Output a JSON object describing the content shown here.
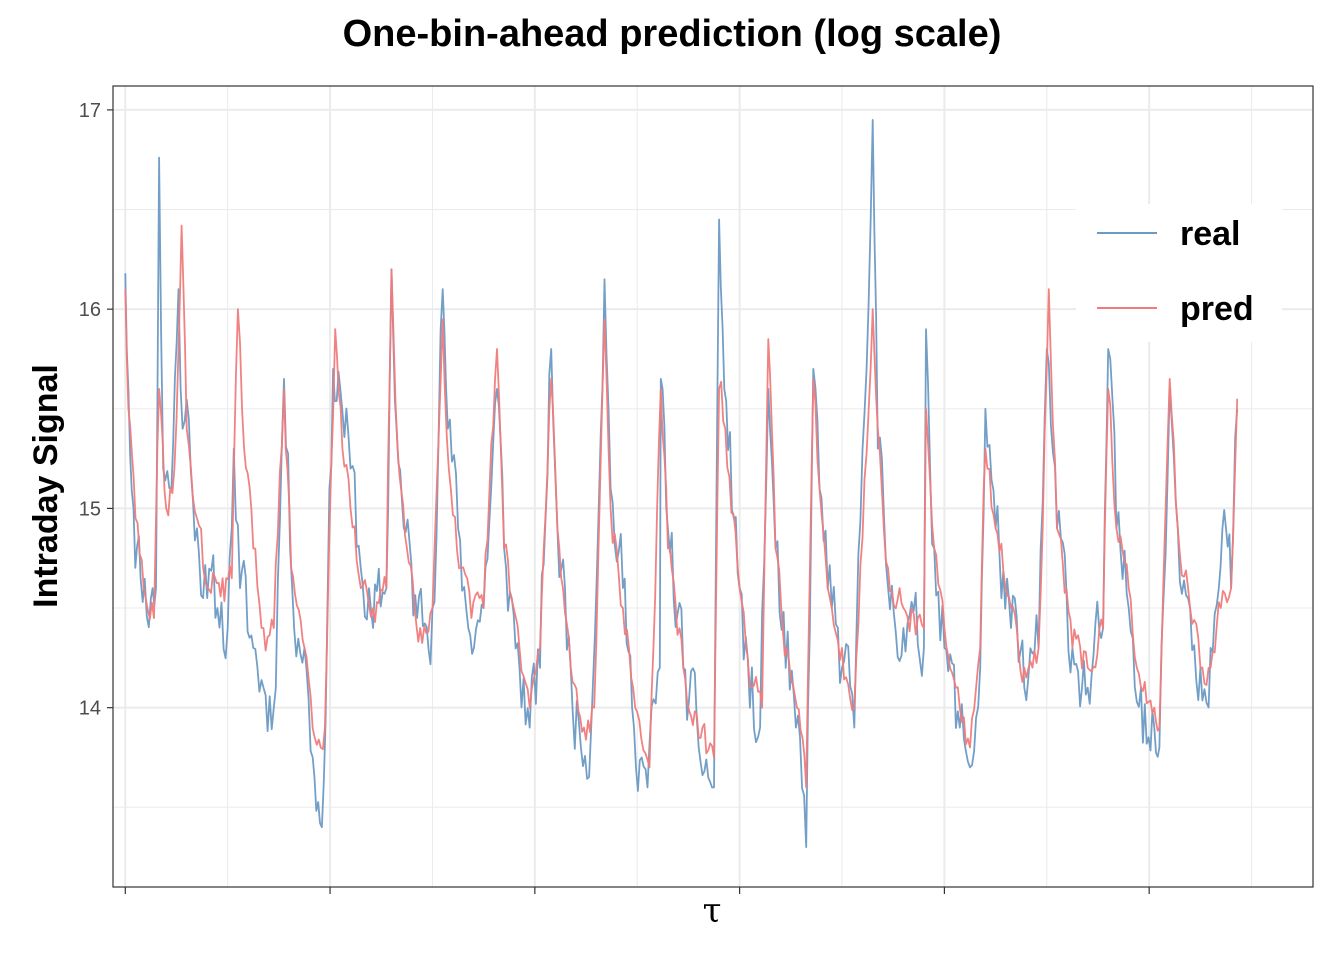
{
  "chart_data": {
    "type": "line",
    "title": "One-bin-ahead prediction (log scale)",
    "xlabel": "τ",
    "ylabel": "Intraday Signal",
    "ylim": [
      13.1,
      17.12
    ],
    "yticks": [
      14,
      15,
      16,
      17
    ],
    "ytick_labels": [
      "14",
      "15",
      "16",
      "17"
    ],
    "x_range": [
      -12,
      1160
    ],
    "x_major_ticks": [
      0,
      200,
      400,
      600,
      800,
      1000
    ],
    "x_minor_gridlines": [
      100,
      300,
      500,
      700,
      900,
      1100
    ],
    "grid": true,
    "legend_position": "top-right",
    "colors": {
      "real": "#6b9ac4",
      "pred": "#f07b7b",
      "grid": "#ebebeb",
      "panel_border": "#333333"
    },
    "series": [
      {
        "name": "real",
        "profile": [
          [
            0,
            16.18
          ],
          [
            3,
            15.6
          ],
          [
            8,
            15.0
          ],
          [
            15,
            14.65
          ],
          [
            25,
            14.55
          ],
          [
            30,
            14.6
          ],
          [
            33,
            16.76
          ],
          [
            37,
            15.2
          ],
          [
            45,
            15.1
          ],
          [
            52,
            16.1
          ],
          [
            56,
            15.4
          ],
          [
            62,
            15.45
          ],
          [
            70,
            14.9
          ],
          [
            80,
            14.55
          ],
          [
            90,
            14.5
          ],
          [
            100,
            14.4
          ],
          [
            106,
            15.3
          ],
          [
            112,
            14.6
          ],
          [
            125,
            14.3
          ],
          [
            135,
            14.1
          ],
          [
            145,
            14.0
          ],
          [
            155,
            15.65
          ],
          [
            163,
            14.6
          ],
          [
            175,
            14.3
          ],
          [
            183,
            13.75
          ],
          [
            192,
            13.4
          ],
          [
            203,
            15.7
          ],
          [
            210,
            15.6
          ],
          [
            220,
            15.2
          ],
          [
            230,
            14.7
          ],
          [
            242,
            14.4
          ],
          [
            255,
            14.6
          ],
          [
            260,
            16.2
          ],
          [
            265,
            15.4
          ],
          [
            272,
            14.9
          ],
          [
            285,
            14.45
          ],
          [
            300,
            14.5
          ],
          [
            310,
            16.1
          ],
          [
            315,
            15.4
          ],
          [
            325,
            14.9
          ],
          [
            335,
            14.4
          ],
          [
            350,
            14.5
          ],
          [
            363,
            15.6
          ],
          [
            370,
            14.8
          ],
          [
            385,
            14.2
          ],
          [
            395,
            13.9
          ],
          [
            405,
            14.2
          ],
          [
            416,
            15.8
          ],
          [
            422,
            14.9
          ],
          [
            435,
            14.2
          ],
          [
            445,
            13.8
          ],
          [
            455,
            13.9
          ],
          [
            468,
            16.15
          ],
          [
            474,
            15.1
          ],
          [
            486,
            14.6
          ],
          [
            495,
            14.0
          ],
          [
            510,
            13.6
          ],
          [
            522,
            14.2
          ],
          [
            523,
            15.65
          ],
          [
            530,
            14.9
          ],
          [
            545,
            14.2
          ],
          [
            560,
            13.8
          ],
          [
            575,
            13.6
          ],
          [
            580,
            16.45
          ],
          [
            585,
            15.6
          ],
          [
            600,
            14.6
          ],
          [
            610,
            14.0
          ],
          [
            620,
            13.9
          ],
          [
            628,
            15.6
          ],
          [
            635,
            14.8
          ],
          [
            645,
            14.2
          ],
          [
            655,
            13.9
          ],
          [
            665,
            13.3
          ],
          [
            672,
            15.7
          ],
          [
            678,
            15.1
          ],
          [
            690,
            14.5
          ],
          [
            700,
            14.2
          ],
          [
            712,
            13.9
          ],
          [
            730,
            16.95
          ],
          [
            735,
            15.3
          ],
          [
            745,
            14.6
          ],
          [
            760,
            14.4
          ],
          [
            780,
            14.3
          ],
          [
            782,
            15.9
          ],
          [
            790,
            14.8
          ],
          [
            800,
            14.3
          ],
          [
            815,
            13.9
          ],
          [
            825,
            13.7
          ],
          [
            835,
            14.2
          ],
          [
            840,
            15.5
          ],
          [
            850,
            14.9
          ],
          [
            865,
            14.4
          ],
          [
            878,
            14.1
          ],
          [
            892,
            14.3
          ],
          [
            900,
            15.8
          ],
          [
            910,
            14.9
          ],
          [
            925,
            14.3
          ],
          [
            940,
            14.1
          ],
          [
            955,
            14.4
          ],
          [
            960,
            15.8
          ],
          [
            968,
            14.9
          ],
          [
            980,
            14.5
          ],
          [
            992,
            14.1
          ],
          [
            1005,
            13.9
          ],
          [
            1010,
            13.8
          ],
          [
            1020,
            15.6
          ],
          [
            1028,
            14.9
          ],
          [
            1040,
            14.5
          ],
          [
            1050,
            14.2
          ],
          [
            1060,
            14.3
          ],
          [
            1068,
            14.6
          ],
          [
            1075,
            14.9
          ],
          [
            1080,
            14.6
          ],
          [
            1086,
            15.5
          ]
        ],
        "noise": 0.25,
        "seed": 11
      },
      {
        "name": "pred",
        "profile": [
          [
            0,
            16.1
          ],
          [
            3,
            15.5
          ],
          [
            10,
            14.95
          ],
          [
            18,
            14.6
          ],
          [
            28,
            14.45
          ],
          [
            33,
            15.6
          ],
          [
            40,
            15.0
          ],
          [
            48,
            15.2
          ],
          [
            52,
            15.8
          ],
          [
            55,
            16.42
          ],
          [
            60,
            15.4
          ],
          [
            70,
            14.95
          ],
          [
            80,
            14.6
          ],
          [
            95,
            14.65
          ],
          [
            104,
            14.65
          ],
          [
            110,
            16.0
          ],
          [
            116,
            15.3
          ],
          [
            125,
            14.8
          ],
          [
            135,
            14.4
          ],
          [
            145,
            14.4
          ],
          [
            155,
            15.6
          ],
          [
            162,
            14.7
          ],
          [
            175,
            14.3
          ],
          [
            185,
            13.85
          ],
          [
            195,
            13.9
          ],
          [
            205,
            15.9
          ],
          [
            212,
            15.3
          ],
          [
            220,
            15.0
          ],
          [
            230,
            14.6
          ],
          [
            242,
            14.5
          ],
          [
            255,
            14.6
          ],
          [
            260,
            16.2
          ],
          [
            266,
            15.3
          ],
          [
            275,
            14.8
          ],
          [
            288,
            14.4
          ],
          [
            300,
            14.5
          ],
          [
            310,
            15.95
          ],
          [
            316,
            15.2
          ],
          [
            326,
            14.7
          ],
          [
            338,
            14.45
          ],
          [
            350,
            14.5
          ],
          [
            363,
            15.8
          ],
          [
            370,
            14.8
          ],
          [
            385,
            14.3
          ],
          [
            395,
            14.0
          ],
          [
            405,
            14.3
          ],
          [
            416,
            15.65
          ],
          [
            422,
            14.9
          ],
          [
            435,
            14.2
          ],
          [
            448,
            13.9
          ],
          [
            458,
            14.0
          ],
          [
            468,
            15.95
          ],
          [
            474,
            15.0
          ],
          [
            486,
            14.5
          ],
          [
            498,
            14.0
          ],
          [
            512,
            13.7
          ],
          [
            523,
            15.6
          ],
          [
            530,
            14.8
          ],
          [
            545,
            14.2
          ],
          [
            560,
            13.85
          ],
          [
            575,
            13.75
          ],
          [
            580,
            15.6
          ],
          [
            586,
            15.4
          ],
          [
            600,
            14.6
          ],
          [
            612,
            14.1
          ],
          [
            622,
            14.0
          ],
          [
            628,
            15.85
          ],
          [
            635,
            14.8
          ],
          [
            646,
            14.3
          ],
          [
            656,
            14.0
          ],
          [
            665,
            13.6
          ],
          [
            672,
            15.65
          ],
          [
            678,
            15.1
          ],
          [
            690,
            14.5
          ],
          [
            700,
            14.3
          ],
          [
            712,
            14.0
          ],
          [
            730,
            16.0
          ],
          [
            735,
            15.4
          ],
          [
            745,
            14.7
          ],
          [
            760,
            14.5
          ],
          [
            780,
            14.4
          ],
          [
            782,
            15.5
          ],
          [
            790,
            14.8
          ],
          [
            800,
            14.4
          ],
          [
            815,
            14.0
          ],
          [
            825,
            13.8
          ],
          [
            835,
            14.3
          ],
          [
            840,
            15.3
          ],
          [
            850,
            14.9
          ],
          [
            865,
            14.5
          ],
          [
            878,
            14.2
          ],
          [
            892,
            14.3
          ],
          [
            902,
            16.1
          ],
          [
            910,
            14.9
          ],
          [
            925,
            14.3
          ],
          [
            940,
            14.2
          ],
          [
            955,
            14.4
          ],
          [
            960,
            15.6
          ],
          [
            968,
            14.9
          ],
          [
            980,
            14.6
          ],
          [
            992,
            14.1
          ],
          [
            1005,
            14.0
          ],
          [
            1010,
            13.9
          ],
          [
            1020,
            15.65
          ],
          [
            1028,
            14.9
          ],
          [
            1040,
            14.5
          ],
          [
            1050,
            14.2
          ],
          [
            1060,
            14.2
          ],
          [
            1070,
            14.5
          ],
          [
            1080,
            14.6
          ],
          [
            1086,
            15.55
          ]
        ],
        "noise": 0.11,
        "seed": 29
      }
    ]
  }
}
